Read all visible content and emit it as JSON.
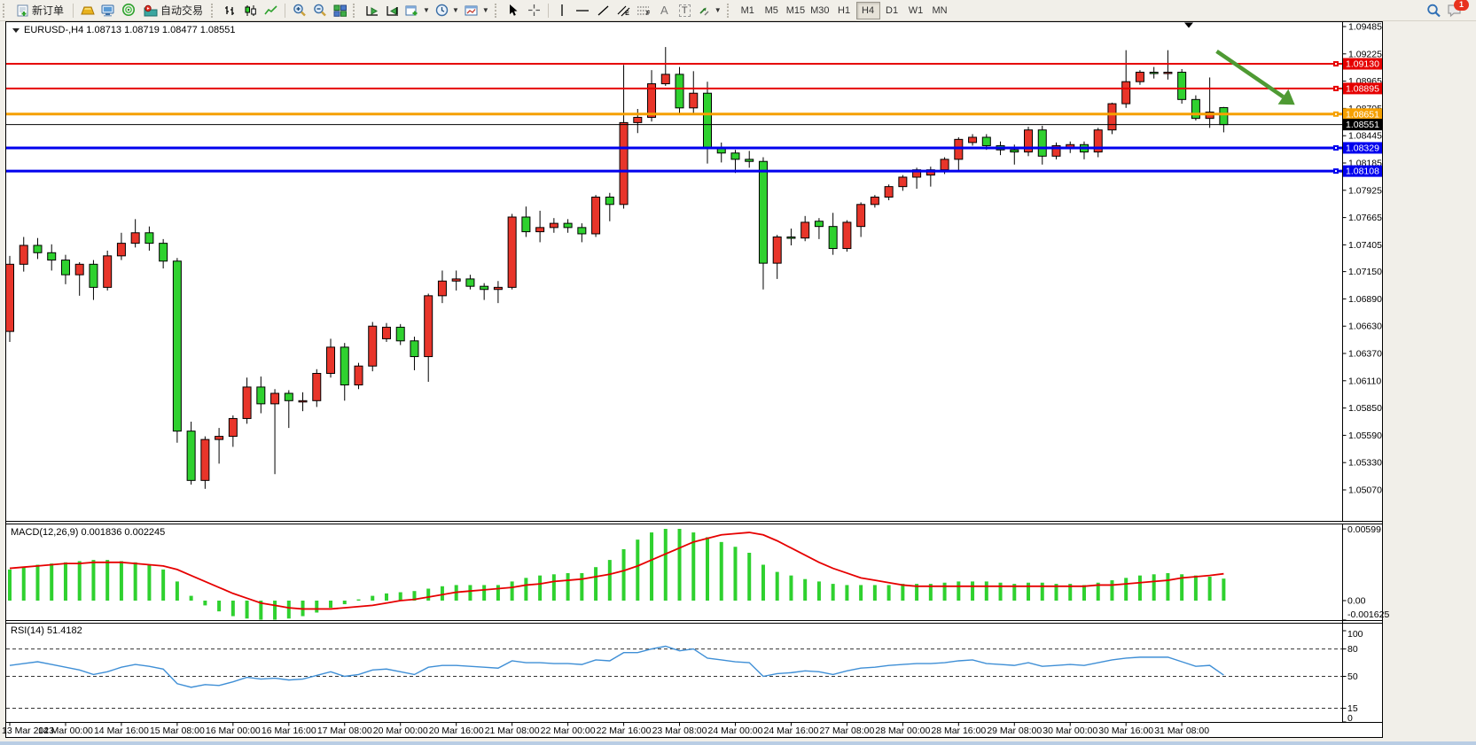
{
  "toolbar": {
    "new_order_label": "新订单",
    "autotrading_label": "自动交易",
    "tools": {
      "text_tool": "A",
      "label_tool": "T",
      "channel_sub": "E",
      "fib_sub": "F"
    },
    "timeframes": [
      "M1",
      "M5",
      "M15",
      "M30",
      "H1",
      "H4",
      "D1",
      "W1",
      "MN"
    ],
    "active_timeframe": "H4",
    "notification_count": "1"
  },
  "chart": {
    "title": "EURUSD-,H4  1.08713 1.08719 1.08477 1.08551"
  },
  "chart_data": {
    "type": "candlestick",
    "symbol": "EURUSD-",
    "timeframe": "H4",
    "quote": {
      "open": "1.08713",
      "high": "1.08719",
      "low": "1.08477",
      "close": "1.08551"
    },
    "main": {
      "ylim": [
        1.0507,
        1.09485
      ],
      "up_color": "#e8352a",
      "down_color": "#2fd12f",
      "axis_ticks": [
        "1.09485",
        "1.09225",
        "1.08965",
        "1.08705",
        "1.08445",
        "1.08185",
        "1.07925",
        "1.07665",
        "1.07405",
        "1.07150",
        "1.06890",
        "1.06630",
        "1.06370",
        "1.06110",
        "1.05850",
        "1.05590",
        "1.05330",
        "1.05070"
      ],
      "lines": [
        {
          "price": 1.0913,
          "label": "1.09130",
          "color": "#e60000",
          "width": 2
        },
        {
          "price": 1.08895,
          "label": "1.08895",
          "color": "#e60000",
          "width": 2
        },
        {
          "price": 1.08651,
          "label": "1.08651",
          "color": "#f5a000",
          "width": 3
        },
        {
          "price": 1.08551,
          "label": "1.08551",
          "color": "#000000",
          "width": 1
        },
        {
          "price": 1.08329,
          "label": "1.08329",
          "color": "#0000ee",
          "width": 3
        },
        {
          "price": 1.08108,
          "label": "1.08108",
          "color": "#0000ee",
          "width": 3
        }
      ],
      "annotation_arrow": {
        "from_index": 86.5,
        "from_price": 1.0925,
        "to_index": 92.1,
        "to_price": 1.0874,
        "color": "#4e9a33"
      },
      "candles": [
        [
          1.0658,
          1.073,
          1.0648,
          1.0722
        ],
        [
          1.0722,
          1.0748,
          1.0715,
          1.074
        ],
        [
          1.074,
          1.0747,
          1.0727,
          1.0733
        ],
        [
          1.0733,
          1.0741,
          1.0716,
          1.0726
        ],
        [
          1.0726,
          1.0731,
          1.0703,
          1.0712
        ],
        [
          1.0712,
          1.0724,
          1.0692,
          1.0722
        ],
        [
          1.0722,
          1.0726,
          1.0688,
          1.07
        ],
        [
          1.07,
          1.0735,
          1.0697,
          1.073
        ],
        [
          1.073,
          1.0752,
          1.0726,
          1.0742
        ],
        [
          1.0742,
          1.0765,
          1.0738,
          1.0752
        ],
        [
          1.0752,
          1.0758,
          1.0735,
          1.0742
        ],
        [
          1.0742,
          1.0746,
          1.0718,
          1.0725
        ],
        [
          1.0725,
          1.0728,
          1.0552,
          1.0563
        ],
        [
          1.0563,
          1.0572,
          1.0512,
          1.0516
        ],
        [
          1.0516,
          1.0558,
          1.0508,
          1.0555
        ],
        [
          1.0555,
          1.0566,
          1.0532,
          1.0558
        ],
        [
          1.0558,
          1.0578,
          1.0548,
          1.0575
        ],
        [
          1.0575,
          1.0614,
          1.057,
          1.0605
        ],
        [
          1.0605,
          1.0615,
          1.058,
          1.0589
        ],
        [
          1.0589,
          1.0603,
          1.0522,
          1.0599
        ],
        [
          1.0599,
          1.0602,
          1.0566,
          1.0592
        ],
        [
          1.0591,
          1.06,
          1.0582,
          1.0592
        ],
        [
          1.0592,
          1.0622,
          1.0586,
          1.0618
        ],
        [
          1.0618,
          1.0651,
          1.0614,
          1.0643
        ],
        [
          1.0643,
          1.0647,
          1.0592,
          1.0607
        ],
        [
          1.0607,
          1.0628,
          1.0603,
          1.0625
        ],
        [
          1.0625,
          1.0667,
          1.062,
          1.0663
        ],
        [
          1.0651,
          1.0666,
          1.0648,
          1.0662
        ],
        [
          1.0662,
          1.0665,
          1.0645,
          1.0649
        ],
        [
          1.0649,
          1.0653,
          1.0621,
          1.0634
        ],
        [
          1.0634,
          1.0694,
          1.061,
          1.0692
        ],
        [
          1.0692,
          1.0716,
          1.0685,
          1.0706
        ],
        [
          1.0706,
          1.0716,
          1.0697,
          1.0708
        ],
        [
          1.0708,
          1.0712,
          1.0698,
          1.0701
        ],
        [
          1.0701,
          1.0704,
          1.0688,
          1.0698
        ],
        [
          1.0698,
          1.0706,
          1.0685,
          1.07
        ],
        [
          1.07,
          1.077,
          1.0698,
          1.0767
        ],
        [
          1.0767,
          1.0777,
          1.0748,
          1.0753
        ],
        [
          1.0753,
          1.0773,
          1.0743,
          1.0757
        ],
        [
          1.0757,
          1.0766,
          1.0752,
          1.0761
        ],
        [
          1.0761,
          1.0765,
          1.0752,
          1.0757
        ],
        [
          1.0757,
          1.0761,
          1.0743,
          1.0751
        ],
        [
          1.0751,
          1.0788,
          1.0748,
          1.0786
        ],
        [
          1.0786,
          1.079,
          1.0763,
          1.0779
        ],
        [
          1.0779,
          1.0912,
          1.0775,
          1.0857
        ],
        [
          1.0857,
          1.087,
          1.0847,
          1.0862
        ],
        [
          1.0862,
          1.0907,
          1.0858,
          1.0894
        ],
        [
          1.0894,
          1.0929,
          1.0892,
          1.0903
        ],
        [
          1.0903,
          1.091,
          1.0866,
          1.0871
        ],
        [
          1.0871,
          1.0906,
          1.0866,
          1.0885
        ],
        [
          1.0885,
          1.0896,
          1.0818,
          1.0833
        ],
        [
          1.0833,
          1.0838,
          1.0819,
          1.0828
        ],
        [
          1.0828,
          1.0831,
          1.0809,
          1.0822
        ],
        [
          1.0822,
          1.083,
          1.0814,
          1.082
        ],
        [
          1.082,
          1.0824,
          1.0698,
          1.0723
        ],
        [
          1.0723,
          1.075,
          1.0708,
          1.0748
        ],
        [
          1.0748,
          1.0756,
          1.074,
          1.0747
        ],
        [
          1.0747,
          1.0768,
          1.0744,
          1.0762
        ],
        [
          1.0763,
          1.0766,
          1.0746,
          1.0758
        ],
        [
          1.0758,
          1.0771,
          1.0731,
          1.0737
        ],
        [
          1.0737,
          1.0764,
          1.0734,
          1.0762
        ],
        [
          1.0758,
          1.0781,
          1.0748,
          1.0779
        ],
        [
          1.0779,
          1.0788,
          1.0776,
          1.0786
        ],
        [
          1.0786,
          1.0798,
          1.0783,
          1.0796
        ],
        [
          1.0796,
          1.0807,
          1.0792,
          1.0805
        ],
        [
          1.0805,
          1.0814,
          1.0794,
          1.0812
        ],
        [
          1.0807,
          1.0815,
          1.0796,
          1.0812
        ],
        [
          1.0812,
          1.0824,
          1.0808,
          1.0822
        ],
        [
          1.0822,
          1.0843,
          1.081,
          1.0841
        ],
        [
          1.0838,
          1.0846,
          1.0835,
          1.0843
        ],
        [
          1.0843,
          1.0846,
          1.0831,
          1.0835
        ],
        [
          1.0835,
          1.0839,
          1.0826,
          1.0831
        ],
        [
          1.0831,
          1.0836,
          1.0817,
          1.0829
        ],
        [
          1.0829,
          1.0853,
          1.0825,
          1.085
        ],
        [
          1.085,
          1.0854,
          1.0817,
          1.0825
        ],
        [
          1.0825,
          1.0838,
          1.0822,
          1.0835
        ],
        [
          1.0832,
          1.0839,
          1.0828,
          1.0836
        ],
        [
          1.0836,
          1.0839,
          1.0822,
          1.0829
        ],
        [
          1.0829,
          1.0852,
          1.0824,
          1.085
        ],
        [
          1.085,
          1.0876,
          1.0846,
          1.0875
        ],
        [
          1.0875,
          1.0926,
          1.0871,
          1.0896
        ],
        [
          1.0896,
          1.0907,
          1.0893,
          1.0905
        ],
        [
          1.0905,
          1.091,
          1.0899,
          1.0904
        ],
        [
          1.0904,
          1.0926,
          1.0898,
          1.0905
        ],
        [
          1.0905,
          1.0908,
          1.0875,
          1.0879
        ],
        [
          1.0879,
          1.0883,
          1.0859,
          1.0861
        ],
        [
          1.0861,
          1.09,
          1.0852,
          1.0867
        ],
        [
          1.08713,
          1.08719,
          1.08477,
          1.08551
        ]
      ]
    },
    "macd": {
      "label": "MACD(12,26,9) 0.001836 0.002245",
      "params": "12,26,9",
      "value": "0.001836",
      "signal_value": "0.002245",
      "axis_ticks": [
        "0.00599",
        "0.00",
        "-0.001625"
      ],
      "histogram_color": "#2fd12f",
      "signal_color": "#e60000",
      "histogram": [
        0.0026,
        0.0028,
        0.003,
        0.0031,
        0.0032,
        0.0033,
        0.0034,
        0.0034,
        0.0033,
        0.0032,
        0.003,
        0.0026,
        0.0016,
        0.0004,
        -0.0004,
        -0.0009,
        -0.0013,
        -0.0015,
        -0.0016,
        -0.0016,
        -0.0015,
        -0.0013,
        -0.001,
        -0.0006,
        -0.0003,
        0.0001,
        0.0004,
        0.0006,
        0.0007,
        0.0008,
        0.001,
        0.0012,
        0.0013,
        0.0013,
        0.0013,
        0.0013,
        0.0016,
        0.0019,
        0.0021,
        0.0022,
        0.0023,
        0.0023,
        0.0028,
        0.0034,
        0.0043,
        0.0051,
        0.0057,
        0.006,
        0.006,
        0.0057,
        0.0053,
        0.0049,
        0.0045,
        0.004,
        0.003,
        0.0024,
        0.0021,
        0.0018,
        0.0016,
        0.0014,
        0.0013,
        0.0013,
        0.0013,
        0.0013,
        0.0014,
        0.0014,
        0.0014,
        0.0015,
        0.0016,
        0.0016,
        0.0016,
        0.0015,
        0.0014,
        0.0015,
        0.0015,
        0.0014,
        0.0014,
        0.0013,
        0.0015,
        0.0017,
        0.0019,
        0.0021,
        0.0022,
        0.0023,
        0.0022,
        0.0021,
        0.002,
        0.00184
      ],
      "signal": [
        0.0027,
        0.0028,
        0.0029,
        0.003,
        0.0031,
        0.0031,
        0.0032,
        0.0032,
        0.0032,
        0.0031,
        0.003,
        0.0029,
        0.0026,
        0.0021,
        0.0016,
        0.0011,
        0.0006,
        0.0002,
        -0.0002,
        -0.0004,
        -0.0006,
        -0.0007,
        -0.0007,
        -0.0007,
        -0.0006,
        -0.0005,
        -0.0004,
        -0.0002,
        0.0,
        0.0001,
        0.0003,
        0.0005,
        0.0007,
        0.0008,
        0.0009,
        0.001,
        0.0011,
        0.0013,
        0.0014,
        0.0016,
        0.0017,
        0.0018,
        0.002,
        0.0022,
        0.0025,
        0.0029,
        0.0034,
        0.0039,
        0.0044,
        0.0049,
        0.0052,
        0.0055,
        0.0056,
        0.0057,
        0.0055,
        0.005,
        0.0044,
        0.0038,
        0.0032,
        0.0027,
        0.0023,
        0.0019,
        0.0017,
        0.0015,
        0.0013,
        0.0012,
        0.0012,
        0.0012,
        0.0012,
        0.0012,
        0.0012,
        0.0012,
        0.0012,
        0.0012,
        0.0012,
        0.0012,
        0.0012,
        0.0012,
        0.0013,
        0.0013,
        0.0014,
        0.0015,
        0.0016,
        0.0017,
        0.0019,
        0.002,
        0.0021,
        0.002245
      ]
    },
    "rsi": {
      "label": "RSI(14) 51.4182",
      "value": "51.4182",
      "line_color": "#3f8fd6",
      "levels": [
        80,
        50,
        15
      ],
      "axis_ticks": [
        "100",
        "80",
        "50",
        "15",
        "0"
      ],
      "values": [
        62,
        64,
        66,
        63,
        60,
        57,
        52,
        55,
        60,
        63,
        61,
        58,
        42,
        38,
        41,
        40,
        44,
        49,
        47,
        48,
        46,
        47,
        51,
        55,
        50,
        52,
        57,
        58,
        55,
        52,
        60,
        62,
        62,
        61,
        60,
        59,
        67,
        65,
        65,
        64,
        64,
        63,
        68,
        67,
        76,
        76,
        80,
        83,
        78,
        80,
        70,
        68,
        66,
        65,
        50,
        53,
        54,
        56,
        55,
        52,
        56,
        59,
        60,
        62,
        63,
        64,
        64,
        65,
        67,
        68,
        64,
        63,
        62,
        65,
        61,
        62,
        63,
        62,
        65,
        68,
        70,
        71,
        71,
        71,
        66,
        61,
        62,
        51.4
      ]
    },
    "x_axis": {
      "labels": [
        "13 Mar 2023",
        "14 Mar 00:00",
        "14 Mar 16:00",
        "15 Mar 08:00",
        "16 Mar 00:00",
        "16 Mar 16:00",
        "17 Mar 08:00",
        "20 Mar 00:00",
        "20 Mar 16:00",
        "21 Mar 08:00",
        "22 Mar 00:00",
        "22 Mar 16:00",
        "23 Mar 08:00",
        "24 Mar 00:00",
        "24 Mar 16:00",
        "27 Mar 08:00",
        "28 Mar 00:00",
        "28 Mar 16:00",
        "29 Mar 08:00",
        "30 Mar 00:00",
        "30 Mar 16:00",
        "31 Mar 08:00"
      ],
      "candles_per_label": 4
    }
  }
}
